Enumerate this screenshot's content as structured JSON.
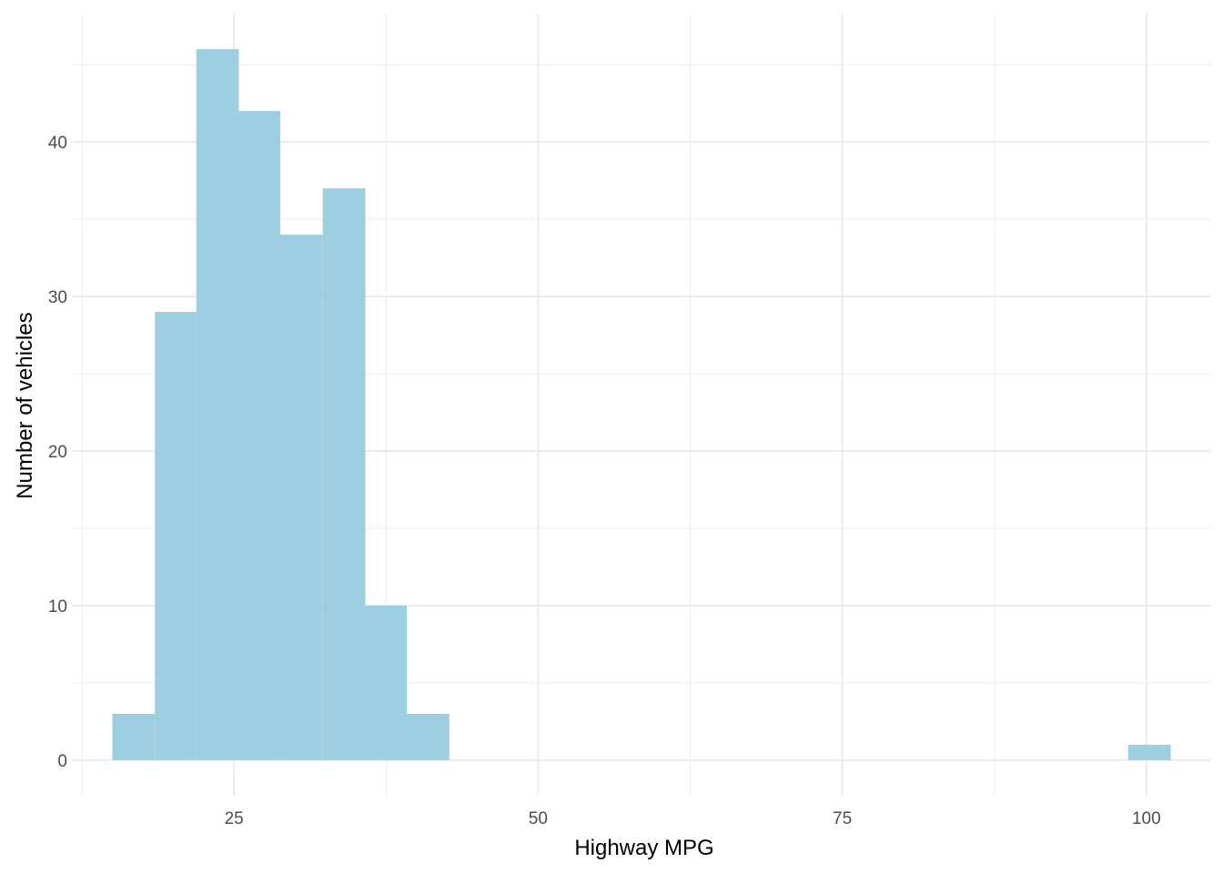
{
  "chart_data": {
    "type": "histogram",
    "xlabel": "Highway MPG",
    "ylabel": "Number of vehicles",
    "xlim": [
      11.75,
      105.25
    ],
    "ylim": [
      -2.3,
      48.3
    ],
    "x_ticks": [
      25,
      50,
      75,
      100
    ],
    "y_ticks": [
      0,
      10,
      20,
      30,
      40
    ],
    "grid": true,
    "bar_color": "#9ecfe0",
    "grid_color": "#ebebeb",
    "bins": [
      {
        "x0": 15.0,
        "x1": 18.5,
        "count": 3
      },
      {
        "x0": 18.5,
        "x1": 21.9,
        "count": 29
      },
      {
        "x0": 21.9,
        "x1": 25.4,
        "count": 46
      },
      {
        "x0": 25.4,
        "x1": 28.8,
        "count": 42
      },
      {
        "x0": 28.8,
        "x1": 32.3,
        "count": 34
      },
      {
        "x0": 32.3,
        "x1": 35.8,
        "count": 37
      },
      {
        "x0": 35.8,
        "x1": 39.2,
        "count": 10
      },
      {
        "x0": 39.2,
        "x1": 42.7,
        "count": 3
      },
      {
        "x0": 98.5,
        "x1": 102.0,
        "count": 1
      }
    ]
  }
}
